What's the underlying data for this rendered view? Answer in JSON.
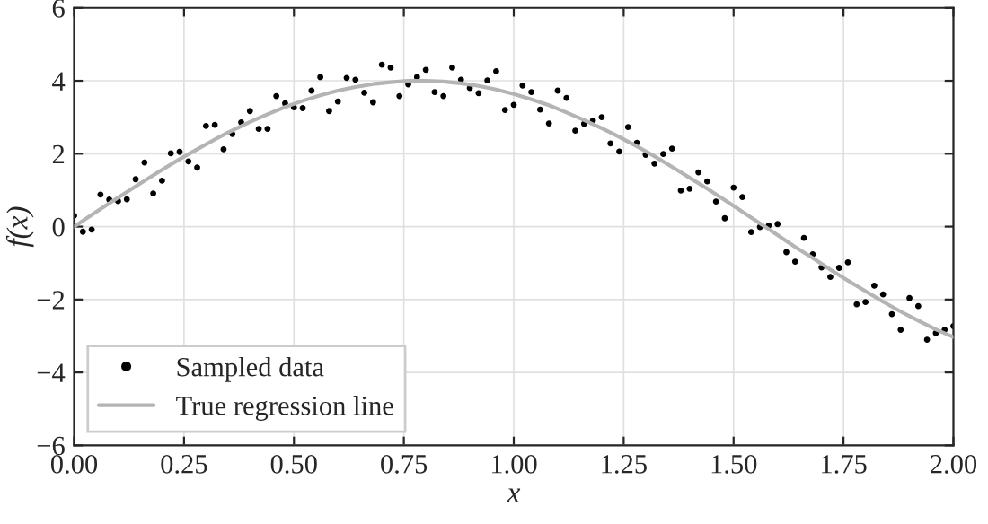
{
  "chart_data": {
    "type": "scatter",
    "xlabel": "x",
    "ylabel": "f(x)",
    "xlim": [
      0,
      2
    ],
    "ylim": [
      -6,
      6
    ],
    "xticks": [
      {
        "value": 0,
        "label": "0.00"
      },
      {
        "value": 0.25,
        "label": "0.25"
      },
      {
        "value": 0.5,
        "label": "0.50"
      },
      {
        "value": 0.75,
        "label": "0.75"
      },
      {
        "value": 1,
        "label": "1.00"
      },
      {
        "value": 1.25,
        "label": "1.25"
      },
      {
        "value": 1.5,
        "label": "1.50"
      },
      {
        "value": 1.75,
        "label": "1.75"
      },
      {
        "value": 2,
        "label": "2.00"
      }
    ],
    "yticks": [
      {
        "value": -6,
        "label": "−6"
      },
      {
        "value": -4,
        "label": "−4"
      },
      {
        "value": -2,
        "label": "−2"
      },
      0,
      2,
      4,
      6
    ],
    "grid": true,
    "legend": "bottom left",
    "series": [
      {
        "name": "Sampled data",
        "color": "#000000",
        "marker": "circle",
        "x": [
          0,
          0.04,
          0.08,
          0.12,
          0.16,
          0.2,
          0.24,
          0.28,
          0.32,
          0.36,
          0.4,
          0.44,
          0.48,
          0.52,
          0.56,
          0.6,
          0.64,
          0.68,
          0.72,
          0.76,
          0.8,
          0.84,
          0.88,
          0.92,
          0.96,
          1.0,
          1.04,
          1.08,
          1.12,
          1.16,
          1.2,
          1.24,
          1.28,
          1.32,
          1.36,
          1.4,
          1.44,
          1.48,
          1.52,
          1.56,
          1.6,
          1.64,
          1.68,
          1.72,
          1.76,
          1.8,
          1.84,
          1.88,
          1.92,
          1.96,
          2.0,
          0.02,
          0.06,
          0.1,
          0.14,
          0.18,
          0.22,
          0.26,
          0.3,
          0.34,
          0.38,
          0.42,
          0.46,
          0.5,
          0.54,
          0.58,
          0.62,
          0.66,
          0.7,
          0.74,
          0.78,
          0.82,
          0.86,
          0.9,
          0.94,
          0.98,
          1.02,
          1.06,
          1.1,
          1.14,
          1.18,
          1.22,
          1.26,
          1.3,
          1.34,
          1.38,
          1.42,
          1.46,
          1.5,
          1.54,
          1.58,
          1.62,
          1.66,
          1.7,
          1.74,
          1.78,
          1.82,
          1.86,
          1.9,
          1.94,
          1.98
        ],
        "values": [
          0.3,
          -0.08,
          0.74,
          0.75,
          1.76,
          1.26,
          2.05,
          1.62,
          2.79,
          2.54,
          3.17,
          2.68,
          3.38,
          3.25,
          4.1,
          3.43,
          4.03,
          3.41,
          4.36,
          3.9,
          4.3,
          3.58,
          4.03,
          3.66,
          4.26,
          3.34,
          3.69,
          2.83,
          3.53,
          2.82,
          3.0,
          2.06,
          2.3,
          1.73,
          2.14,
          1.04,
          1.24,
          0.23,
          0.81,
          -0.01,
          0.07,
          -0.96,
          -0.76,
          -1.38,
          -0.98,
          -2.07,
          -1.86,
          -2.83,
          -2.18,
          -2.92,
          -2.73,
          -0.14,
          0.88,
          0.7,
          1.3,
          0.91,
          2.01,
          1.79,
          2.76,
          2.12,
          2.86,
          2.68,
          3.58,
          3.27,
          3.73,
          3.17,
          4.08,
          3.67,
          4.44,
          3.58,
          4.1,
          3.69,
          4.36,
          3.8,
          4.01,
          3.2,
          3.87,
          3.21,
          3.73,
          2.63,
          2.91,
          2.28,
          2.73,
          1.97,
          1.99,
          0.99,
          1.49,
          0.69,
          1.07,
          -0.15,
          0.03,
          -0.7,
          -0.31,
          -1.12,
          -1.13,
          -2.13,
          -1.62,
          -2.4,
          -1.96,
          -3.1,
          -2.83
        ]
      },
      {
        "name": "True regression line",
        "type": "line",
        "color": "#b4b4b4",
        "line_style": "solid",
        "x": [
          0,
          0.04,
          0.08,
          0.12,
          0.16,
          0.2,
          0.24,
          0.28,
          0.32,
          0.36,
          0.4,
          0.44,
          0.48,
          0.52,
          0.56,
          0.6,
          0.64,
          0.68,
          0.72,
          0.76,
          0.8,
          0.84,
          0.88,
          0.92,
          0.96,
          1.0,
          1.04,
          1.08,
          1.12,
          1.16,
          1.2,
          1.24,
          1.28,
          1.32,
          1.36,
          1.4,
          1.44,
          1.48,
          1.52,
          1.56,
          1.6,
          1.64,
          1.68,
          1.72,
          1.76,
          1.8,
          1.84,
          1.88,
          1.92,
          1.96,
          2.0
        ],
        "values": [
          0,
          0.32,
          0.64,
          0.95,
          1.26,
          1.56,
          1.85,
          2.12,
          2.39,
          2.64,
          2.87,
          3.08,
          3.28,
          3.45,
          3.6,
          3.73,
          3.83,
          3.91,
          3.96,
          4.0,
          4.0,
          3.98,
          3.93,
          3.86,
          3.76,
          3.64,
          3.49,
          3.33,
          3.13,
          2.92,
          2.7,
          2.46,
          2.2,
          1.93,
          1.64,
          1.34,
          1.04,
          0.73,
          0.41,
          0.09,
          -0.23,
          -0.56,
          -0.86,
          -1.18,
          -1.48,
          -1.77,
          -2.06,
          -2.33,
          -2.58,
          -2.82,
          -3.03
        ]
      }
    ]
  }
}
